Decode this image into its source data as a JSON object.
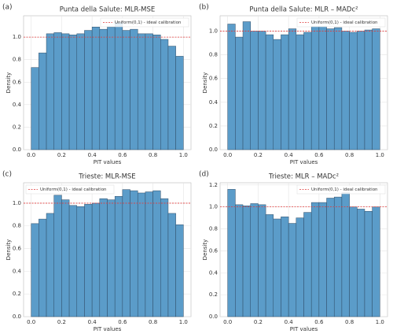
{
  "chart_data": [
    {
      "type": "histogram",
      "panel_label": "(a)",
      "title": "Punta della Salute: MLR-MSE",
      "xlabel": "PIT values",
      "ylabel": "Density",
      "bins": [
        0,
        0.05,
        0.1,
        0.15,
        0.2,
        0.25,
        0.3,
        0.35,
        0.4,
        0.45,
        0.5,
        0.55,
        0.6,
        0.65,
        0.7,
        0.75,
        0.8,
        0.85,
        0.9,
        0.95,
        1.0
      ],
      "values": [
        0.73,
        0.86,
        1.03,
        1.04,
        1.03,
        1.02,
        1.03,
        1.06,
        1.09,
        1.07,
        1.09,
        1.13,
        1.06,
        1.07,
        1.03,
        1.03,
        1.02,
        0.98,
        0.92,
        0.83
      ],
      "color": "#5b9cc9",
      "edgecolor": "#2e4b66",
      "xlim": [
        -0.05,
        1.05
      ],
      "ylim": [
        0,
        1.19
      ],
      "xticks": [
        {
          "value": 0,
          "label": "0.0"
        },
        {
          "value": 0.2,
          "label": "0.2"
        },
        {
          "value": 0.4,
          "label": "0.4"
        },
        {
          "value": 0.6,
          "label": "0.6"
        },
        {
          "value": 0.8,
          "label": "0.8"
        },
        {
          "value": 1,
          "label": "1.0"
        }
      ],
      "yticks": [
        {
          "value": 0,
          "label": "0.0"
        },
        {
          "value": 0.2,
          "label": "0.2"
        },
        {
          "value": 0.4,
          "label": "0.4"
        },
        {
          "value": 0.6,
          "label": "0.6"
        },
        {
          "value": 0.8,
          "label": "0.8"
        },
        {
          "value": 1,
          "label": "1.0"
        }
      ],
      "grid": true,
      "reference_line": {
        "value": 1,
        "label": "Uniform(0,1) - ideal calibration",
        "color": "#e03b3b"
      },
      "legend": "upper right"
    },
    {
      "type": "histogram",
      "panel_label": "(b)",
      "title": "Punta della Salute: MLR – MADc²",
      "xlabel": "PIT values",
      "ylabel": "Density",
      "bins": [
        0,
        0.05,
        0.1,
        0.15,
        0.2,
        0.25,
        0.3,
        0.35,
        0.4,
        0.45,
        0.5,
        0.55,
        0.6,
        0.65,
        0.7,
        0.75,
        0.8,
        0.85,
        0.9,
        0.95,
        1.0
      ],
      "values": [
        1.06,
        0.95,
        1.08,
        1.0,
        1.0,
        0.97,
        0.93,
        0.97,
        1.02,
        0.97,
        0.99,
        1.04,
        1.04,
        1.02,
        1.03,
        1.0,
        0.99,
        1.0,
        1.01,
        1.02
      ],
      "color": "#5b9cc9",
      "edgecolor": "#2e4b66",
      "xlim": [
        -0.05,
        1.05
      ],
      "ylim": [
        0,
        1.13
      ],
      "xticks": [
        {
          "value": 0,
          "label": "0.0"
        },
        {
          "value": 0.2,
          "label": "0.2"
        },
        {
          "value": 0.4,
          "label": "0.4"
        },
        {
          "value": 0.6,
          "label": "0.6"
        },
        {
          "value": 0.8,
          "label": "0.8"
        },
        {
          "value": 1,
          "label": "1.0"
        }
      ],
      "yticks": [
        {
          "value": 0,
          "label": "0.0"
        },
        {
          "value": 0.2,
          "label": "0.2"
        },
        {
          "value": 0.4,
          "label": "0.4"
        },
        {
          "value": 0.6,
          "label": "0.6"
        },
        {
          "value": 0.8,
          "label": "0.8"
        },
        {
          "value": 1,
          "label": "1.0"
        }
      ],
      "grid": true,
      "reference_line": {
        "value": 1,
        "label": "Uniform(0,1) - ideal calibration",
        "color": "#e03b3b"
      },
      "legend": "upper right"
    },
    {
      "type": "histogram",
      "panel_label": "(c)",
      "title": "Trieste: MLR-MSE",
      "xlabel": "PIT values",
      "ylabel": "Density",
      "bins": [
        0,
        0.05,
        0.1,
        0.15,
        0.2,
        0.25,
        0.3,
        0.35,
        0.4,
        0.45,
        0.5,
        0.55,
        0.6,
        0.65,
        0.7,
        0.75,
        0.8,
        0.85,
        0.9,
        0.95,
        1.0
      ],
      "values": [
        0.82,
        0.86,
        0.91,
        1.07,
        1.03,
        0.98,
        0.97,
        0.99,
        1.0,
        1.04,
        1.03,
        1.06,
        1.12,
        1.11,
        1.09,
        1.1,
        1.11,
        1.04,
        0.91,
        0.81
      ],
      "color": "#5b9cc9",
      "edgecolor": "#2e4b66",
      "xlim": [
        -0.05,
        1.05
      ],
      "ylim": [
        0,
        1.18
      ],
      "xticks": [
        {
          "value": 0,
          "label": "0.0"
        },
        {
          "value": 0.2,
          "label": "0.2"
        },
        {
          "value": 0.4,
          "label": "0.4"
        },
        {
          "value": 0.6,
          "label": "0.6"
        },
        {
          "value": 0.8,
          "label": "0.8"
        },
        {
          "value": 1,
          "label": "1.0"
        }
      ],
      "yticks": [
        {
          "value": 0,
          "label": "0.0"
        },
        {
          "value": 0.2,
          "label": "0.2"
        },
        {
          "value": 0.4,
          "label": "0.4"
        },
        {
          "value": 0.6,
          "label": "0.6"
        },
        {
          "value": 0.8,
          "label": "0.8"
        },
        {
          "value": 1,
          "label": "1.0"
        }
      ],
      "grid": true,
      "reference_line": {
        "value": 1,
        "label": "Uniform(0,1) - ideal calibration",
        "color": "#e03b3b"
      },
      "legend": "upper left"
    },
    {
      "type": "histogram",
      "panel_label": "(d)",
      "title": "Trieste: MLR – MADc²",
      "xlabel": "PIT values",
      "ylabel": "Density",
      "bins": [
        0,
        0.05,
        0.1,
        0.15,
        0.2,
        0.25,
        0.3,
        0.35,
        0.4,
        0.45,
        0.5,
        0.55,
        0.6,
        0.65,
        0.7,
        0.75,
        0.8,
        0.85,
        0.9,
        0.95,
        1.0
      ],
      "values": [
        1.16,
        1.02,
        1.01,
        1.03,
        1.02,
        0.93,
        0.89,
        0.91,
        0.85,
        0.9,
        0.95,
        1.04,
        1.04,
        1.08,
        1.09,
        1.13,
        1.0,
        0.98,
        0.96,
        1.0
      ],
      "color": "#5b9cc9",
      "edgecolor": "#2e4b66",
      "xlim": [
        -0.05,
        1.05
      ],
      "ylim": [
        0,
        1.22
      ],
      "xticks": [
        {
          "value": 0,
          "label": "0.0"
        },
        {
          "value": 0.2,
          "label": "0.2"
        },
        {
          "value": 0.4,
          "label": "0.4"
        },
        {
          "value": 0.6,
          "label": "0.6"
        },
        {
          "value": 0.8,
          "label": "0.8"
        },
        {
          "value": 1,
          "label": "1.0"
        }
      ],
      "yticks": [
        {
          "value": 0,
          "label": "0.0"
        },
        {
          "value": 0.2,
          "label": "0.2"
        },
        {
          "value": 0.4,
          "label": "0.4"
        },
        {
          "value": 0.6,
          "label": "0.6"
        },
        {
          "value": 0.8,
          "label": "0.8"
        },
        {
          "value": 1,
          "label": "1.0"
        },
        {
          "value": 1.2,
          "label": "1.2"
        }
      ],
      "grid": true,
      "reference_line": {
        "value": 1,
        "label": "Uniform(0,1) - ideal calibration",
        "color": "#e03b3b"
      },
      "legend": "upper right"
    }
  ]
}
